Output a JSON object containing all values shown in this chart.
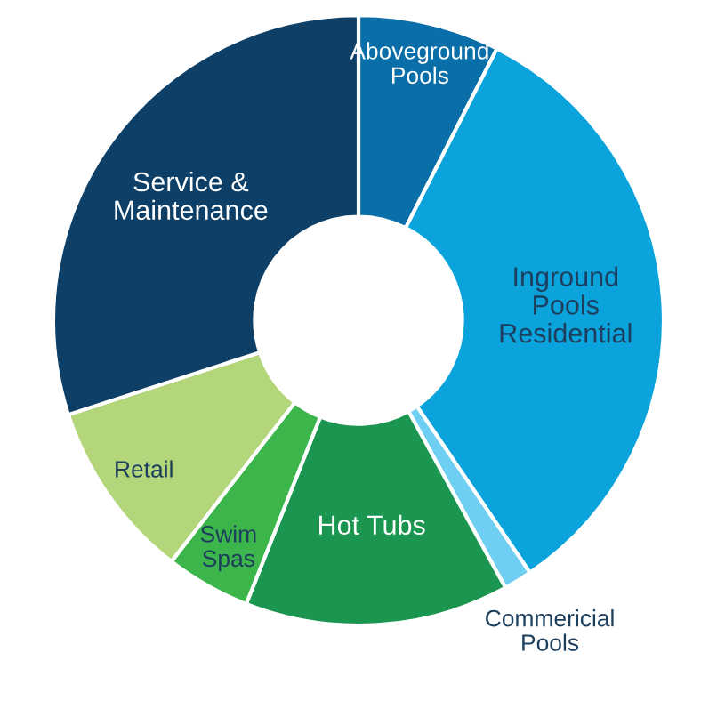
{
  "chart_data": {
    "type": "donut",
    "categories": [
      "Aboveground Pools",
      "Inground Pools Residential",
      "Commericial Pools",
      "Hot Tubs",
      "Swim Spas",
      "Retail",
      "Service & Maintenance"
    ],
    "values": [
      7.5,
      33,
      1.5,
      14,
      4.5,
      9.5,
      30
    ],
    "colors": [
      "#0a6fa8",
      "#0aa3dc",
      "#6fcff3",
      "#1a9650",
      "#3cb54a",
      "#b3d67a",
      "#0e3f66"
    ]
  }
}
